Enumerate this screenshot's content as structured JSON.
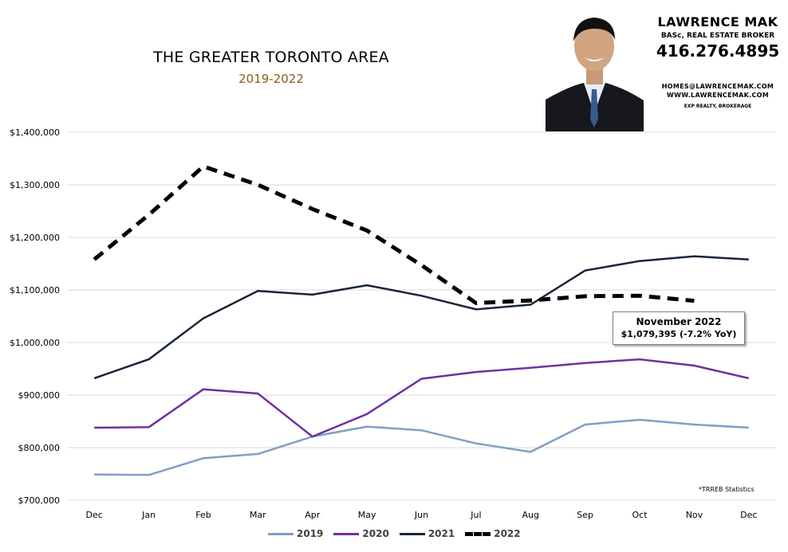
{
  "header": {
    "title": "THE GREATER TORONTO AREA",
    "subtitle": "2019-2022"
  },
  "agent": {
    "name": "LAWRENCE MAK",
    "credentials": "BASc, REAL ESTATE BROKER",
    "phone": "416.276.4895",
    "email": "HOMES@LAWRENCEMAK.COM",
    "website": "WWW.LAWRENCEMAK.COM",
    "brokerage": "EXP REALTY, BROKERAGE"
  },
  "callout": {
    "line1": "November 2022",
    "line2": "$1,079,395  (-7.2%  YoY)"
  },
  "source_note": "*TRREB Statistics",
  "colors": {
    "2019": "#7f9fc6",
    "2020": "#7030a0",
    "2021": "#17253a",
    "2022": "#000000",
    "grid": "#d9d9d9"
  },
  "chart_data": {
    "type": "line",
    "title": "THE GREATER TORONTO AREA",
    "subtitle": "2019-2022",
    "categories": [
      "Dec",
      "Jan",
      "Feb",
      "Mar",
      "Apr",
      "May",
      "Jun",
      "Jul",
      "Aug",
      "Sep",
      "Oct",
      "Nov",
      "Dec"
    ],
    "ylim": [
      700000,
      1400000
    ],
    "yticks": [
      "$700,000",
      "$800,000",
      "$900,000",
      "$1,000,000",
      "$1,100,000",
      "$1,200,000",
      "$1,300,000",
      "$1,400,000"
    ],
    "ytick_values": [
      700000,
      800000,
      900000,
      1000000,
      1100000,
      1200000,
      1300000,
      1400000
    ],
    "grid": true,
    "legend": "bottom",
    "series": [
      {
        "name": "2019",
        "style": "solid",
        "values": [
          749000,
          748000,
          780000,
          788000,
          821000,
          840000,
          833000,
          808000,
          792000,
          844000,
          853000,
          844000,
          838000
        ]
      },
      {
        "name": "2020",
        "style": "solid",
        "values": [
          838000,
          839000,
          911000,
          903000,
          821000,
          864000,
          931000,
          944000,
          952000,
          961000,
          968000,
          956000,
          932000
        ]
      },
      {
        "name": "2021",
        "style": "solid",
        "values": [
          932000,
          968000,
          1046000,
          1098000,
          1091000,
          1109000,
          1089000,
          1063000,
          1072000,
          1137000,
          1155000,
          1164000,
          1158000
        ]
      },
      {
        "name": "2022",
        "style": "dashed",
        "values": [
          1158000,
          1243000,
          1335000,
          1300000,
          1254000,
          1213000,
          1147000,
          1075000,
          1080000,
          1088000,
          1089000,
          1079395,
          null
        ]
      }
    ]
  }
}
